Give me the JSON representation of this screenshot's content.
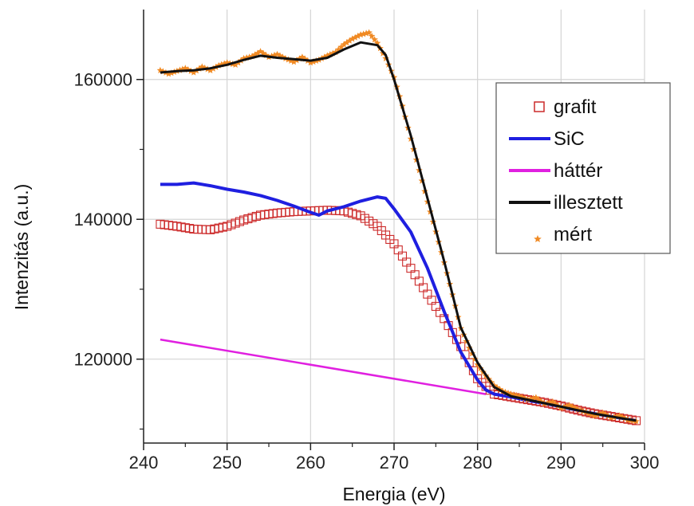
{
  "chart_data": {
    "type": "line",
    "title": "",
    "xlabel": "Energia (eV)",
    "ylabel": "Intenzitás (a.u.)",
    "xlim": [
      240,
      300
    ],
    "ylim": [
      108000,
      170000
    ],
    "x_ticks": [
      240,
      250,
      260,
      270,
      280,
      290,
      300
    ],
    "y_ticks": [
      120000,
      140000,
      160000
    ],
    "grid": true,
    "legend_position": "top-right",
    "series": [
      {
        "name": "grafit",
        "style": "open-square-markers",
        "color": "#cc2a2a",
        "points": [
          [
            242,
            139300
          ],
          [
            244,
            139000
          ],
          [
            246,
            138600
          ],
          [
            248,
            138500
          ],
          [
            250,
            139000
          ],
          [
            252,
            139900
          ],
          [
            254,
            140600
          ],
          [
            256,
            140900
          ],
          [
            258,
            141100
          ],
          [
            260,
            141200
          ],
          [
            262,
            141300
          ],
          [
            264,
            141200
          ],
          [
            266,
            140500
          ],
          [
            268,
            139000
          ],
          [
            270,
            136500
          ],
          [
            272,
            133000
          ],
          [
            274,
            129300
          ],
          [
            276,
            125800
          ],
          [
            278,
            121800
          ],
          [
            280,
            117200
          ],
          [
            282,
            115000
          ],
          [
            284,
            114600
          ],
          [
            286,
            114200
          ],
          [
            288,
            113800
          ],
          [
            290,
            113300
          ],
          [
            292,
            112700
          ],
          [
            294,
            112200
          ],
          [
            296,
            111800
          ],
          [
            298,
            111400
          ],
          [
            299,
            111200
          ]
        ]
      },
      {
        "name": "SiC",
        "style": "line",
        "color": "#1f1fe0",
        "points": [
          [
            242,
            145000
          ],
          [
            244,
            145000
          ],
          [
            246,
            145200
          ],
          [
            248,
            144800
          ],
          [
            250,
            144300
          ],
          [
            252,
            143900
          ],
          [
            254,
            143400
          ],
          [
            256,
            142700
          ],
          [
            258,
            141900
          ],
          [
            260,
            141000
          ],
          [
            261,
            140600
          ],
          [
            262,
            141200
          ],
          [
            264,
            141800
          ],
          [
            266,
            142600
          ],
          [
            268,
            143200
          ],
          [
            269,
            143000
          ],
          [
            270,
            141500
          ],
          [
            272,
            138200
          ],
          [
            274,
            133000
          ],
          [
            276,
            126800
          ],
          [
            278,
            121000
          ],
          [
            280,
            117000
          ],
          [
            281,
            115600
          ],
          [
            282,
            115000
          ],
          [
            284,
            114600
          ],
          [
            286,
            114100
          ],
          [
            288,
            113700
          ],
          [
            290,
            113200
          ],
          [
            292,
            112700
          ],
          [
            294,
            112200
          ],
          [
            296,
            111800
          ],
          [
            298,
            111400
          ],
          [
            299,
            111200
          ]
        ]
      },
      {
        "name": "háttér",
        "style": "line",
        "color": "#e020e0",
        "points": [
          [
            242,
            122800
          ],
          [
            281,
            115000
          ]
        ]
      },
      {
        "name": "illesztett",
        "style": "line",
        "color": "#111111",
        "points": [
          [
            242,
            161000
          ],
          [
            244,
            161200
          ],
          [
            246,
            161300
          ],
          [
            248,
            161600
          ],
          [
            250,
            162100
          ],
          [
            252,
            162800
          ],
          [
            254,
            163400
          ],
          [
            256,
            163100
          ],
          [
            258,
            162900
          ],
          [
            260,
            162700
          ],
          [
            262,
            163100
          ],
          [
            264,
            164300
          ],
          [
            266,
            165300
          ],
          [
            268,
            164900
          ],
          [
            269,
            163500
          ],
          [
            270,
            160000
          ],
          [
            272,
            152000
          ],
          [
            274,
            143000
          ],
          [
            276,
            134000
          ],
          [
            278,
            124500
          ],
          [
            280,
            119500
          ],
          [
            282,
            116000
          ],
          [
            284,
            114700
          ],
          [
            286,
            114200
          ],
          [
            288,
            113700
          ],
          [
            290,
            113200
          ],
          [
            292,
            112700
          ],
          [
            294,
            112200
          ],
          [
            296,
            111800
          ],
          [
            298,
            111400
          ],
          [
            299,
            111200
          ]
        ]
      },
      {
        "name": "mért",
        "style": "star-markers",
        "color": "#f08a24",
        "points": [
          [
            242,
            161300
          ],
          [
            243,
            160800
          ],
          [
            244,
            161200
          ],
          [
            245,
            161600
          ],
          [
            246,
            161000
          ],
          [
            247,
            161800
          ],
          [
            248,
            161300
          ],
          [
            249,
            162000
          ],
          [
            250,
            162400
          ],
          [
            251,
            162100
          ],
          [
            252,
            163000
          ],
          [
            253,
            163300
          ],
          [
            254,
            164000
          ],
          [
            255,
            163200
          ],
          [
            256,
            163600
          ],
          [
            257,
            163000
          ],
          [
            258,
            162500
          ],
          [
            259,
            163200
          ],
          [
            260,
            162400
          ],
          [
            261,
            162800
          ],
          [
            262,
            163400
          ],
          [
            263,
            163900
          ],
          [
            264,
            165000
          ],
          [
            265,
            165800
          ],
          [
            266,
            166400
          ],
          [
            267,
            166700
          ],
          [
            268,
            165200
          ],
          [
            269,
            163000
          ],
          [
            270,
            160300
          ],
          [
            271,
            156200
          ],
          [
            272,
            151500
          ],
          [
            273,
            147000
          ],
          [
            274,
            142500
          ],
          [
            275,
            138200
          ],
          [
            276,
            133800
          ],
          [
            277,
            129200
          ],
          [
            278,
            124400
          ],
          [
            279,
            121600
          ],
          [
            280,
            119200
          ],
          [
            281,
            117600
          ],
          [
            282,
            116200
          ],
          [
            283,
            115400
          ],
          [
            284,
            115000
          ],
          [
            285,
            114700
          ],
          [
            286,
            114200
          ],
          [
            287,
            114500
          ],
          [
            288,
            113600
          ],
          [
            289,
            113900
          ],
          [
            290,
            113000
          ],
          [
            291,
            113400
          ],
          [
            292,
            112800
          ],
          [
            293,
            112400
          ],
          [
            294,
            111900
          ],
          [
            295,
            112300
          ],
          [
            296,
            111600
          ],
          [
            297,
            111900
          ],
          [
            298,
            111300
          ],
          [
            299,
            111100
          ]
        ]
      }
    ]
  }
}
